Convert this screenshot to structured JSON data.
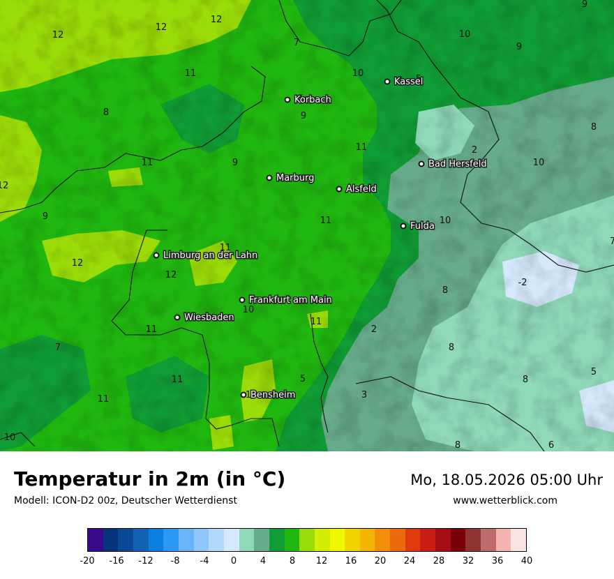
{
  "title": "Temperatur in 2m (in °C)",
  "model": "Modell: ICON-D2 00z, Deutscher Wetterdienst",
  "datetime": "Mo, 18.05.2026 05:00 Uhr",
  "website": "www.wetterblick.com",
  "cities": [
    {
      "name": "Kassel"
    },
    {
      "name": "Korbach"
    },
    {
      "name": "Bad Hersfeld"
    },
    {
      "name": "Marburg"
    },
    {
      "name": "Alsfeld"
    },
    {
      "name": "Fulda"
    },
    {
      "name": "Limburg an der Lahn"
    },
    {
      "name": "Frankfurt am Main"
    },
    {
      "name": "Wiesbaden"
    },
    {
      "name": "Bensheim"
    }
  ],
  "isolines": [
    "12",
    "12",
    "12",
    "11",
    "8",
    "7",
    "10",
    "9",
    "10",
    "9",
    "9",
    "8",
    "11",
    "2",
    "10",
    "11",
    "9",
    "12",
    "11",
    "10",
    "12",
    "9",
    "11",
    "12",
    "11",
    "11",
    "10",
    "8",
    "-2",
    "7",
    "7",
    "11",
    "2",
    "8",
    "11",
    "5",
    "3",
    "8",
    "5",
    "10",
    "11",
    "6",
    "8",
    "5"
  ],
  "legend": {
    "colors": [
      "#3b0a8c",
      "#07337d",
      "#0a4a95",
      "#1262b6",
      "#0a7fe0",
      "#2c98f6",
      "#6bb4fa",
      "#8ec7fb",
      "#b0d9fb",
      "#d5e9fb",
      "#8fd9b9",
      "#66ab8a",
      "#109c34",
      "#20b810",
      "#9bdc08",
      "#d2ee04",
      "#f0f800",
      "#f1d300",
      "#f4b600",
      "#f38e08",
      "#ef6a0c",
      "#e03a0c",
      "#c81c14",
      "#a50e14",
      "#7a0008",
      "#8e3434",
      "#bd6b6b",
      "#f3b3b0",
      "#fde4e4"
    ],
    "ticks": [
      "-20",
      "-16",
      "-12",
      "-8",
      "-4",
      "0",
      "4",
      "8",
      "12",
      "16",
      "20",
      "24",
      "28",
      "32",
      "36",
      "40"
    ]
  }
}
